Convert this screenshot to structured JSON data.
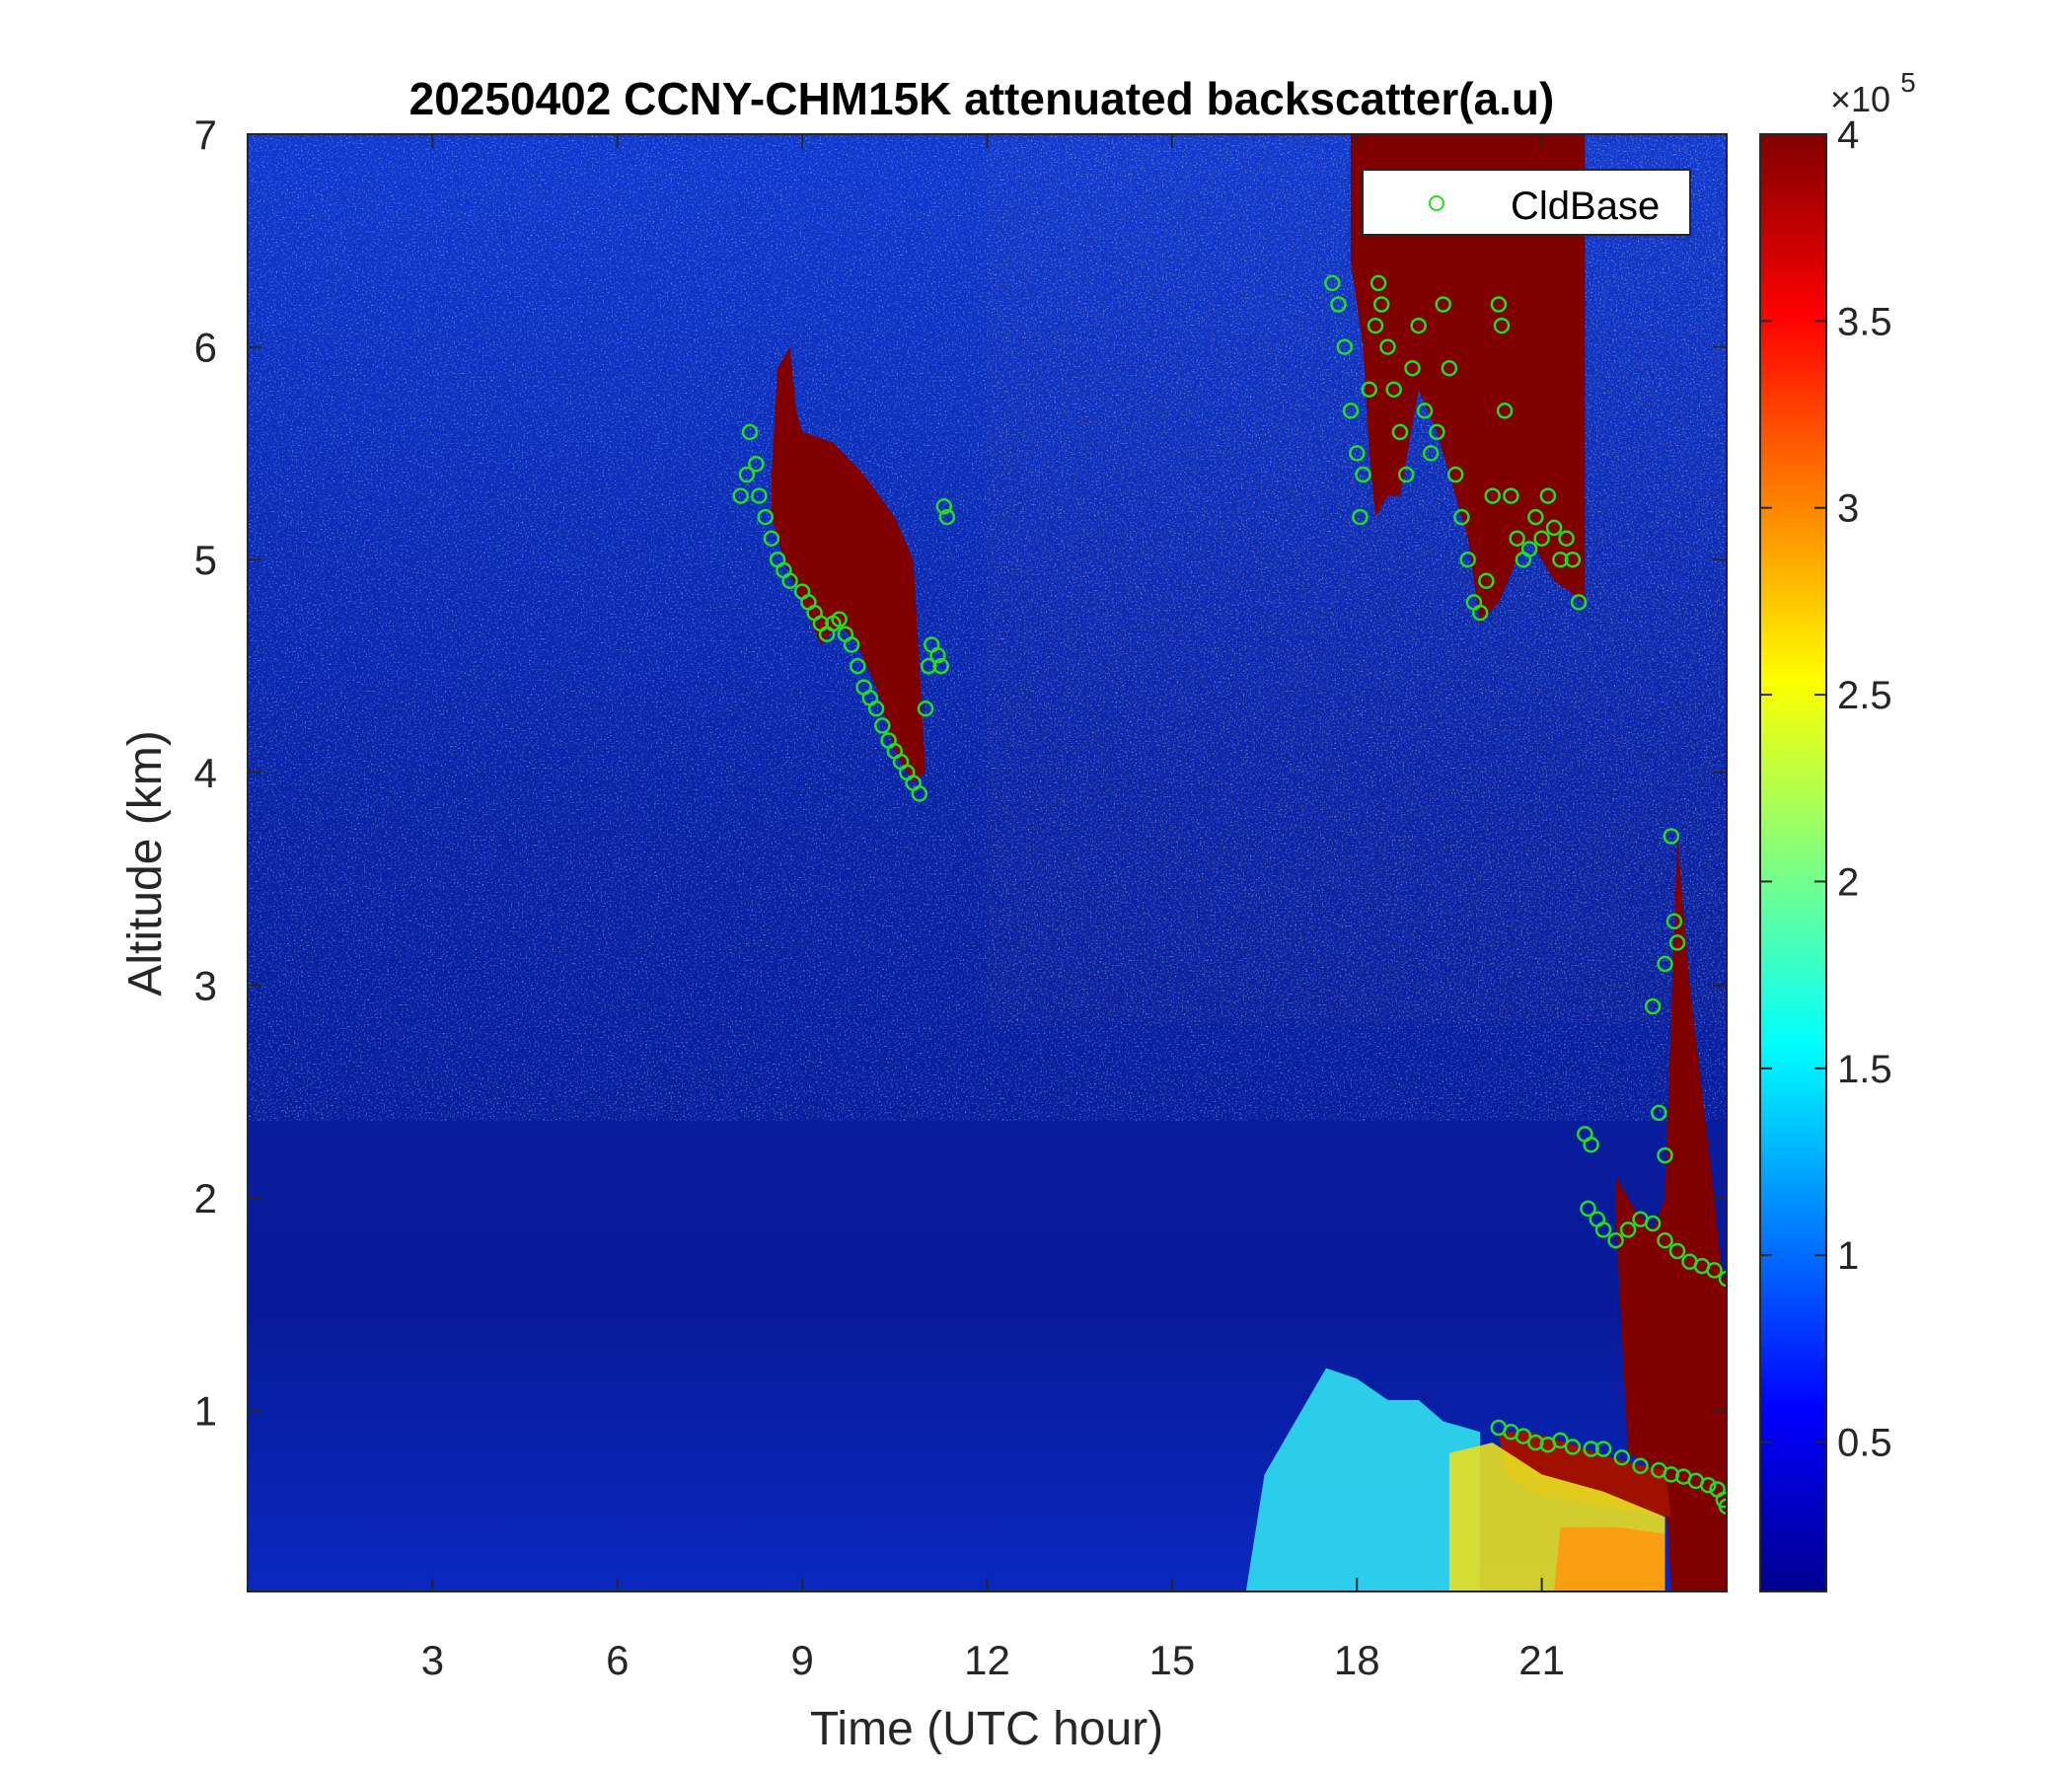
{
  "chart_data": {
    "type": "heatmap",
    "title": "20250402 CCNY-CHM15K attenuated backscatter(a.u)",
    "xlabel": "Time (UTC hour)",
    "ylabel": "Altitude (km)",
    "xlim": [
      0,
      24
    ],
    "ylim": [
      0.15,
      7
    ],
    "xticks": [
      {
        "value": 3,
        "label": "3"
      },
      {
        "value": 6,
        "label": "6"
      },
      {
        "value": 9,
        "label": "9"
      },
      {
        "value": 12,
        "label": "12"
      },
      {
        "value": 15,
        "label": "15"
      },
      {
        "value": 18,
        "label": "18"
      },
      {
        "value": 21,
        "label": "21"
      }
    ],
    "yticks": [
      {
        "value": 1,
        "label": "1"
      },
      {
        "value": 2,
        "label": "2"
      },
      {
        "value": 3,
        "label": "3"
      },
      {
        "value": 4,
        "label": "4"
      },
      {
        "value": 5,
        "label": "5"
      },
      {
        "value": 6,
        "label": "6"
      },
      {
        "value": 7,
        "label": "7"
      }
    ],
    "colorbar": {
      "colormap": "jet",
      "min": 0.1,
      "max": 4,
      "multiplier_base": "×10",
      "multiplier_exponent": "5",
      "ticks": [
        {
          "value": 0.5,
          "label": "0.5"
        },
        {
          "value": 1,
          "label": "1"
        },
        {
          "value": 1.5,
          "label": "1.5"
        },
        {
          "value": 2,
          "label": "2"
        },
        {
          "value": 2.5,
          "label": "2.5"
        },
        {
          "value": 3,
          "label": "3"
        },
        {
          "value": 3.5,
          "label": "3.5"
        },
        {
          "value": 4,
          "label": "4"
        }
      ]
    },
    "legend": {
      "position": "top-right",
      "entries": [
        {
          "label": "CldBase",
          "color": "#22dd22",
          "marker": "circle"
        }
      ]
    },
    "features": [
      {
        "kind": "cloud",
        "color": "#800000",
        "polygon": [
          [
            8.5,
            5.4
          ],
          [
            8.6,
            5.9
          ],
          [
            8.8,
            6.0
          ],
          [
            8.9,
            5.7
          ],
          [
            9.0,
            5.6
          ],
          [
            9.5,
            5.55
          ],
          [
            10.0,
            5.4
          ],
          [
            10.5,
            5.2
          ],
          [
            10.8,
            5.0
          ],
          [
            10.9,
            4.5
          ],
          [
            11.0,
            4.0
          ],
          [
            10.8,
            3.95
          ],
          [
            10.5,
            4.1
          ],
          [
            10.2,
            4.4
          ],
          [
            9.9,
            4.6
          ],
          [
            9.6,
            4.7
          ],
          [
            9.3,
            4.6
          ],
          [
            9.0,
            4.8
          ],
          [
            8.7,
            5.0
          ],
          [
            8.5,
            5.2
          ]
        ]
      },
      {
        "kind": "cloud",
        "color": "#800000",
        "polygon": [
          [
            17.9,
            6.4
          ],
          [
            17.9,
            7.0
          ],
          [
            21.7,
            7.0
          ],
          [
            21.7,
            4.8
          ],
          [
            21.2,
            4.9
          ],
          [
            20.8,
            5.1
          ],
          [
            20.6,
            5.0
          ],
          [
            20.3,
            4.8
          ],
          [
            20.0,
            4.7
          ],
          [
            19.8,
            5.1
          ],
          [
            19.5,
            5.4
          ],
          [
            19.3,
            5.6
          ],
          [
            19.0,
            5.8
          ],
          [
            18.7,
            5.3
          ],
          [
            18.5,
            5.3
          ],
          [
            18.3,
            5.2
          ],
          [
            18.2,
            5.5
          ],
          [
            18.1,
            6.0
          ]
        ]
      },
      {
        "kind": "cloud",
        "color": "#800000",
        "polygon": [
          [
            22.2,
            2.1
          ],
          [
            22.5,
            1.95
          ],
          [
            22.8,
            1.85
          ],
          [
            23.0,
            2.0
          ],
          [
            23.2,
            3.7
          ],
          [
            23.4,
            3.0
          ],
          [
            23.6,
            2.5
          ],
          [
            23.8,
            2.0
          ],
          [
            23.9,
            1.7
          ],
          [
            24.0,
            1.6
          ],
          [
            24.0,
            0.15
          ],
          [
            23.1,
            0.15
          ],
          [
            23.0,
            0.7
          ],
          [
            22.7,
            0.75
          ],
          [
            22.4,
            0.8
          ],
          [
            22.2,
            1.9
          ]
        ]
      },
      {
        "kind": "cloud",
        "color": "#a01000",
        "polygon": [
          [
            20.3,
            0.9
          ],
          [
            20.8,
            0.9
          ],
          [
            21.4,
            0.85
          ],
          [
            21.9,
            0.8
          ],
          [
            22.5,
            0.75
          ],
          [
            23.0,
            0.72
          ],
          [
            23.1,
            0.5
          ],
          [
            22.0,
            0.55
          ],
          [
            21.0,
            0.6
          ],
          [
            20.4,
            0.7
          ]
        ]
      },
      {
        "kind": "aerosol",
        "color": "#30e0f0",
        "polygon": [
          [
            16.2,
            0.15
          ],
          [
            16.5,
            0.7
          ],
          [
            17.0,
            0.95
          ],
          [
            17.5,
            1.2
          ],
          [
            18.0,
            1.15
          ],
          [
            18.5,
            1.05
          ],
          [
            19.0,
            1.05
          ],
          [
            19.4,
            0.95
          ],
          [
            20.0,
            0.9
          ],
          [
            20.0,
            0.15
          ]
        ]
      },
      {
        "kind": "aerosol",
        "color": "#e8e020",
        "polygon": [
          [
            19.5,
            0.15
          ],
          [
            19.5,
            0.8
          ],
          [
            20.2,
            0.85
          ],
          [
            21.0,
            0.7
          ],
          [
            22.0,
            0.62
          ],
          [
            23.0,
            0.5
          ],
          [
            23.0,
            0.15
          ]
        ]
      },
      {
        "kind": "aerosol",
        "color": "#ff9a10",
        "polygon": [
          [
            21.2,
            0.15
          ],
          [
            21.3,
            0.45
          ],
          [
            22.3,
            0.45
          ],
          [
            23.0,
            0.42
          ],
          [
            23.0,
            0.15
          ]
        ]
      }
    ],
    "series": [
      {
        "name": "CldBase",
        "points": [
          [
            8.0,
            5.3
          ],
          [
            8.1,
            5.4
          ],
          [
            8.15,
            5.6
          ],
          [
            8.25,
            5.45
          ],
          [
            8.3,
            5.3
          ],
          [
            8.4,
            5.2
          ],
          [
            8.5,
            5.1
          ],
          [
            8.6,
            5.0
          ],
          [
            8.7,
            4.95
          ],
          [
            8.8,
            4.9
          ],
          [
            9.0,
            4.85
          ],
          [
            9.1,
            4.8
          ],
          [
            9.2,
            4.75
          ],
          [
            9.3,
            4.7
          ],
          [
            9.4,
            4.65
          ],
          [
            9.5,
            4.7
          ],
          [
            9.6,
            4.72
          ],
          [
            9.7,
            4.65
          ],
          [
            9.8,
            4.6
          ],
          [
            9.9,
            4.5
          ],
          [
            10.0,
            4.4
          ],
          [
            10.1,
            4.35
          ],
          [
            10.2,
            4.3
          ],
          [
            10.3,
            4.22
          ],
          [
            10.4,
            4.15
          ],
          [
            10.5,
            4.1
          ],
          [
            10.6,
            4.05
          ],
          [
            10.7,
            4.0
          ],
          [
            10.8,
            3.95
          ],
          [
            10.9,
            3.9
          ],
          [
            11.0,
            4.3
          ],
          [
            11.05,
            4.5
          ],
          [
            11.1,
            4.6
          ],
          [
            11.2,
            4.55
          ],
          [
            11.25,
            4.5
          ],
          [
            11.3,
            5.25
          ],
          [
            11.35,
            5.2
          ],
          [
            17.6,
            6.3
          ],
          [
            17.7,
            6.2
          ],
          [
            17.8,
            6.0
          ],
          [
            17.9,
            5.7
          ],
          [
            18.0,
            5.5
          ],
          [
            18.05,
            5.2
          ],
          [
            18.1,
            5.4
          ],
          [
            18.2,
            5.8
          ],
          [
            18.3,
            6.1
          ],
          [
            18.35,
            6.3
          ],
          [
            18.4,
            6.2
          ],
          [
            18.5,
            6.0
          ],
          [
            18.6,
            5.8
          ],
          [
            18.7,
            5.6
          ],
          [
            18.8,
            5.4
          ],
          [
            18.9,
            5.9
          ],
          [
            19.0,
            6.1
          ],
          [
            19.1,
            5.7
          ],
          [
            19.2,
            5.5
          ],
          [
            19.3,
            5.6
          ],
          [
            19.4,
            6.2
          ],
          [
            19.5,
            5.9
          ],
          [
            19.6,
            5.4
          ],
          [
            19.7,
            5.2
          ],
          [
            19.8,
            5.0
          ],
          [
            19.9,
            4.8
          ],
          [
            20.0,
            4.75
          ],
          [
            20.1,
            4.9
          ],
          [
            20.2,
            5.3
          ],
          [
            20.3,
            6.2
          ],
          [
            20.35,
            6.1
          ],
          [
            20.4,
            5.7
          ],
          [
            20.5,
            5.3
          ],
          [
            20.6,
            5.1
          ],
          [
            20.7,
            5.0
          ],
          [
            20.8,
            5.05
          ],
          [
            20.9,
            5.2
          ],
          [
            21.0,
            5.1
          ],
          [
            21.1,
            5.3
          ],
          [
            21.2,
            5.15
          ],
          [
            21.3,
            5.0
          ],
          [
            21.4,
            5.1
          ],
          [
            21.5,
            5.0
          ],
          [
            21.6,
            4.8
          ],
          [
            21.7,
            2.3
          ],
          [
            21.8,
            2.25
          ],
          [
            21.75,
            1.95
          ],
          [
            21.9,
            1.9
          ],
          [
            22.0,
            1.85
          ],
          [
            22.2,
            1.8
          ],
          [
            22.4,
            1.85
          ],
          [
            22.6,
            1.9
          ],
          [
            22.8,
            1.88
          ],
          [
            23.0,
            1.8
          ],
          [
            23.2,
            1.75
          ],
          [
            23.4,
            1.7
          ],
          [
            23.6,
            1.68
          ],
          [
            23.8,
            1.66
          ],
          [
            24.0,
            1.62
          ],
          [
            23.1,
            3.7
          ],
          [
            23.15,
            3.3
          ],
          [
            23.2,
            3.2
          ],
          [
            23.0,
            3.1
          ],
          [
            22.8,
            2.9
          ],
          [
            22.9,
            2.4
          ],
          [
            23.0,
            2.2
          ],
          [
            20.3,
            0.92
          ],
          [
            20.5,
            0.9
          ],
          [
            20.7,
            0.88
          ],
          [
            20.9,
            0.85
          ],
          [
            21.1,
            0.84
          ],
          [
            21.3,
            0.86
          ],
          [
            21.5,
            0.83
          ],
          [
            21.8,
            0.82
          ],
          [
            22.0,
            0.82
          ],
          [
            22.3,
            0.78
          ],
          [
            22.6,
            0.74
          ],
          [
            22.9,
            0.72
          ],
          [
            23.1,
            0.7
          ],
          [
            23.3,
            0.69
          ],
          [
            23.5,
            0.67
          ],
          [
            23.7,
            0.65
          ],
          [
            23.85,
            0.63
          ],
          [
            23.95,
            0.58
          ],
          [
            24.0,
            0.55
          ]
        ]
      }
    ]
  }
}
